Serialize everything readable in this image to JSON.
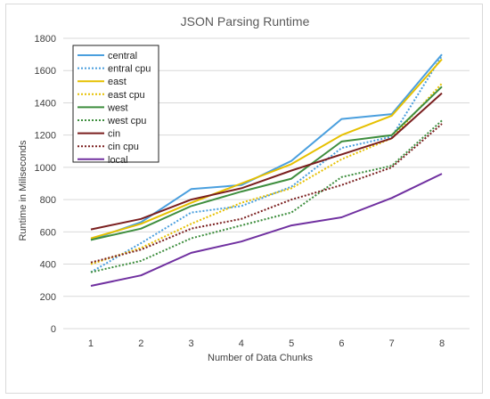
{
  "chart_data": {
    "type": "line",
    "title": "JSON Parsing Runtime",
    "xlabel": "Number of Data Chunks",
    "ylabel": "Runtime in Miliseconds",
    "x": [
      1,
      2,
      3,
      4,
      5,
      6,
      7,
      8
    ],
    "ylim": [
      0,
      1800
    ],
    "yticks": [
      0,
      200,
      400,
      600,
      800,
      1000,
      1200,
      1400,
      1600,
      1800
    ],
    "grid": true,
    "legend_position": "top-left",
    "series": [
      {
        "name": "central",
        "color": "#4a9fde",
        "dash": "solid",
        "values": [
          550,
          660,
          865,
          890,
          1040,
          1300,
          1330,
          1700
        ]
      },
      {
        "name": "entral cpu",
        "color": "#4a9fde",
        "dash": "dotted",
        "values": [
          350,
          530,
          720,
          760,
          880,
          1120,
          1190,
          1690
        ]
      },
      {
        "name": "east",
        "color": "#e6c000",
        "dash": "solid",
        "values": [
          560,
          650,
          780,
          900,
          1020,
          1200,
          1320,
          1670
        ]
      },
      {
        "name": "east cpu",
        "color": "#e6c000",
        "dash": "dotted",
        "values": [
          400,
          500,
          650,
          780,
          870,
          1050,
          1180,
          1520
        ]
      },
      {
        "name": "west",
        "color": "#3e8e3e",
        "dash": "solid",
        "values": [
          550,
          620,
          760,
          850,
          930,
          1160,
          1200,
          1500
        ]
      },
      {
        "name": "west cpu",
        "color": "#3e8e3e",
        "dash": "dotted",
        "values": [
          350,
          420,
          560,
          640,
          720,
          940,
          1010,
          1290
        ]
      },
      {
        "name": "cin",
        "color": "#7a1f1f",
        "dash": "solid",
        "values": [
          615,
          680,
          800,
          870,
          980,
          1080,
          1180,
          1460
        ]
      },
      {
        "name": "cin cpu",
        "color": "#7a1f1f",
        "dash": "dotted",
        "values": [
          410,
          490,
          620,
          680,
          800,
          890,
          1000,
          1270
        ]
      },
      {
        "name": "local",
        "color": "#7030a0",
        "dash": "solid",
        "values": [
          265,
          330,
          470,
          540,
          640,
          690,
          810,
          960
        ]
      }
    ]
  }
}
